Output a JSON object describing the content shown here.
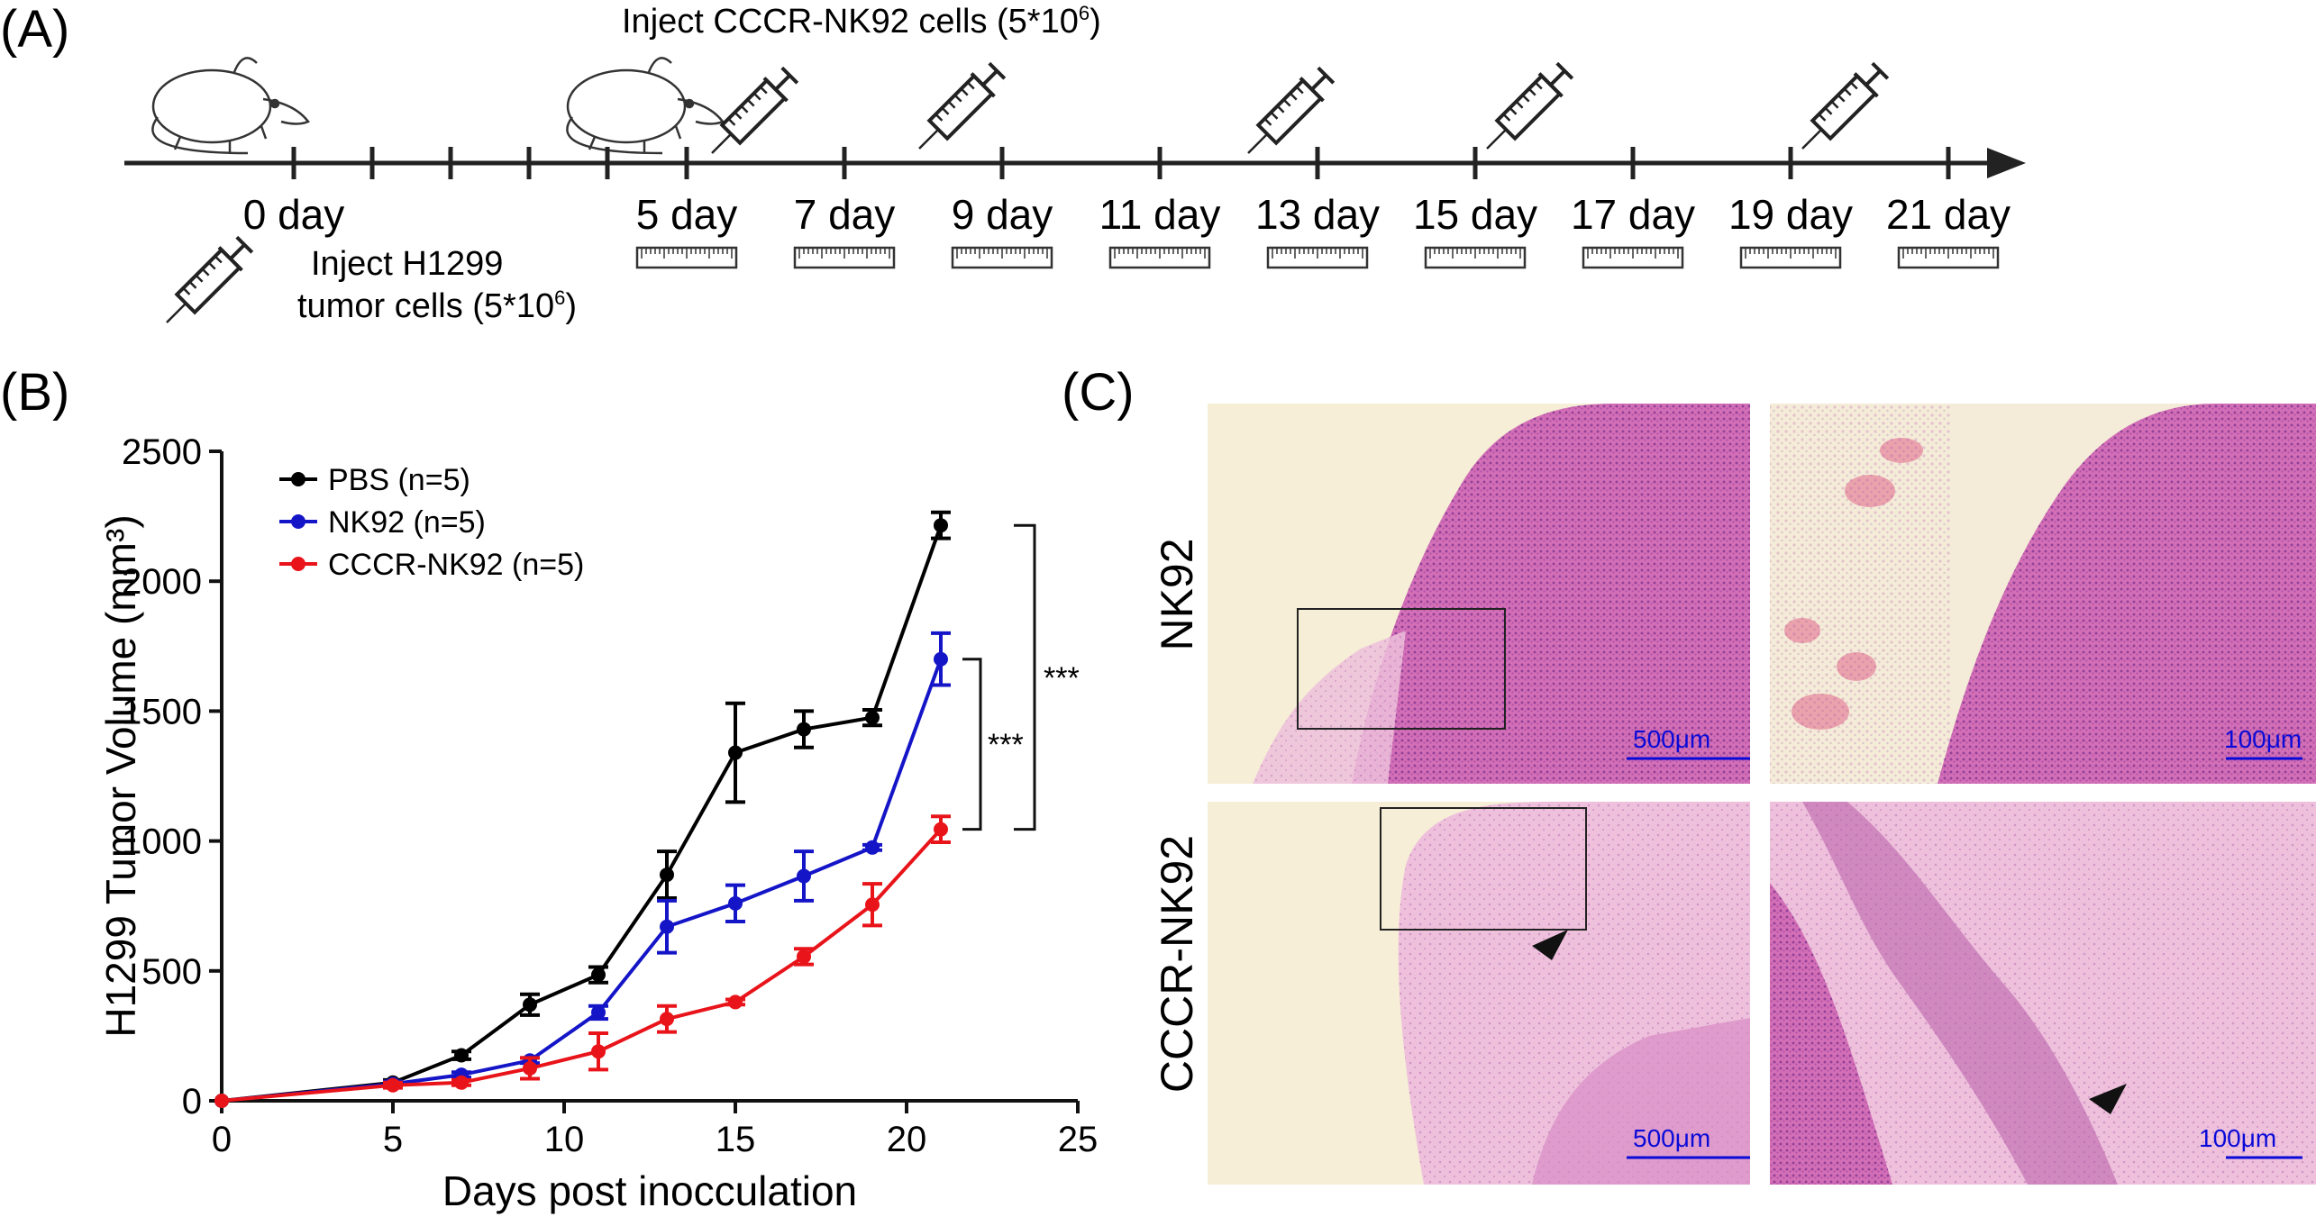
{
  "panels": {
    "a": "(A)",
    "b": "(B)",
    "c": "(C)"
  },
  "timeline": {
    "inject_top": "Inject CCCR-NK92 cells (5*10",
    "inject_top_exp": "6",
    "inject_top_close": ")",
    "inject_bottom_line1": "Inject H1299",
    "inject_bottom_line2": "tumor cells (5*10",
    "inject_bottom_exp": "6",
    "inject_bottom_close": ")",
    "day_labels": [
      "0 day",
      "5 day",
      "7 day",
      "9 day",
      "11 day",
      "13 day",
      "15 day",
      "17 day",
      "19 day",
      "21 day"
    ],
    "icons": [
      "mouse-icon",
      "syringe-icon",
      "ruler-icon",
      "arrow-icon"
    ]
  },
  "chart_data": {
    "type": "line",
    "xlabel": "Days post inocculation",
    "ylabel": "H1299 Tumor Volume (mm³)",
    "xlim": [
      0,
      25
    ],
    "ylim": [
      0,
      2500
    ],
    "xticks": [
      0,
      5,
      10,
      15,
      20,
      25
    ],
    "yticks": [
      0,
      500,
      1000,
      1500,
      2000,
      2500
    ],
    "legend_position": "top-left",
    "x": [
      0,
      5,
      7,
      9,
      11,
      13,
      15,
      17,
      19,
      21
    ],
    "series": [
      {
        "name": "PBS (n=5)",
        "color": "#000000",
        "values": [
          0,
          70,
          175,
          370,
          485,
          870,
          1340,
          1430,
          1475,
          2215
        ],
        "errors": [
          0,
          10,
          15,
          40,
          30,
          90,
          190,
          70,
          30,
          50
        ]
      },
      {
        "name": "NK92 (n=5)",
        "color": "#1515c8",
        "values": [
          0,
          65,
          100,
          155,
          340,
          670,
          760,
          865,
          975,
          1700
        ],
        "errors": [
          0,
          10,
          10,
          10,
          25,
          100,
          70,
          95,
          10,
          100
        ]
      },
      {
        "name": "CCCR-NK92 (n=5)",
        "color": "#e8141a",
        "values": [
          0,
          60,
          70,
          125,
          190,
          315,
          380,
          555,
          755,
          1045
        ],
        "errors": [
          0,
          10,
          10,
          40,
          70,
          50,
          10,
          30,
          80,
          50
        ]
      }
    ],
    "significance": [
      "***",
      "***"
    ]
  },
  "histology": {
    "rows": [
      "NK92",
      "CCCR-NK92"
    ],
    "scalebars": [
      "500μm",
      "100μm",
      "500μm",
      "100μm"
    ]
  }
}
